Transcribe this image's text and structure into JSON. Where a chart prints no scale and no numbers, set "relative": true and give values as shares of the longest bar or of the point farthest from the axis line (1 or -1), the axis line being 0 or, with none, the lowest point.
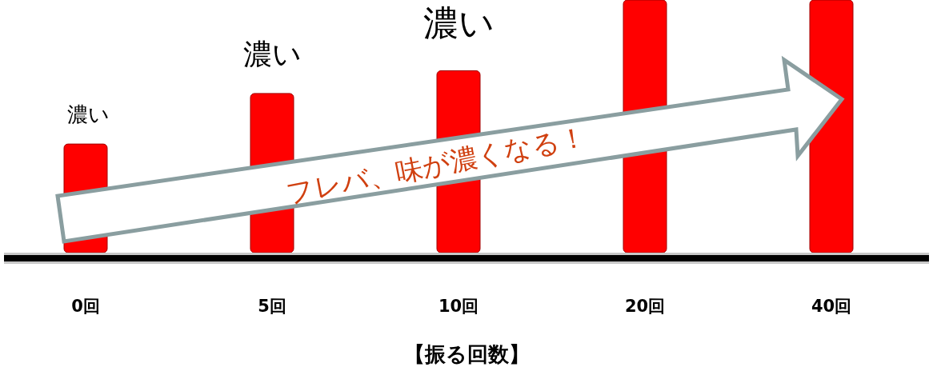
{
  "chart_data": {
    "type": "bar",
    "relative": true,
    "xlabel": "【振る回数】",
    "categories": [
      "0回",
      "5回",
      "10回",
      "20回",
      "40回"
    ],
    "values": [
      0.43,
      0.63,
      0.72,
      1,
      1
    ],
    "color": "#ff0000",
    "annotations": [
      "濃い",
      "濃い",
      "濃い",
      "フレバ、味が濃くなる！"
    ]
  }
}
